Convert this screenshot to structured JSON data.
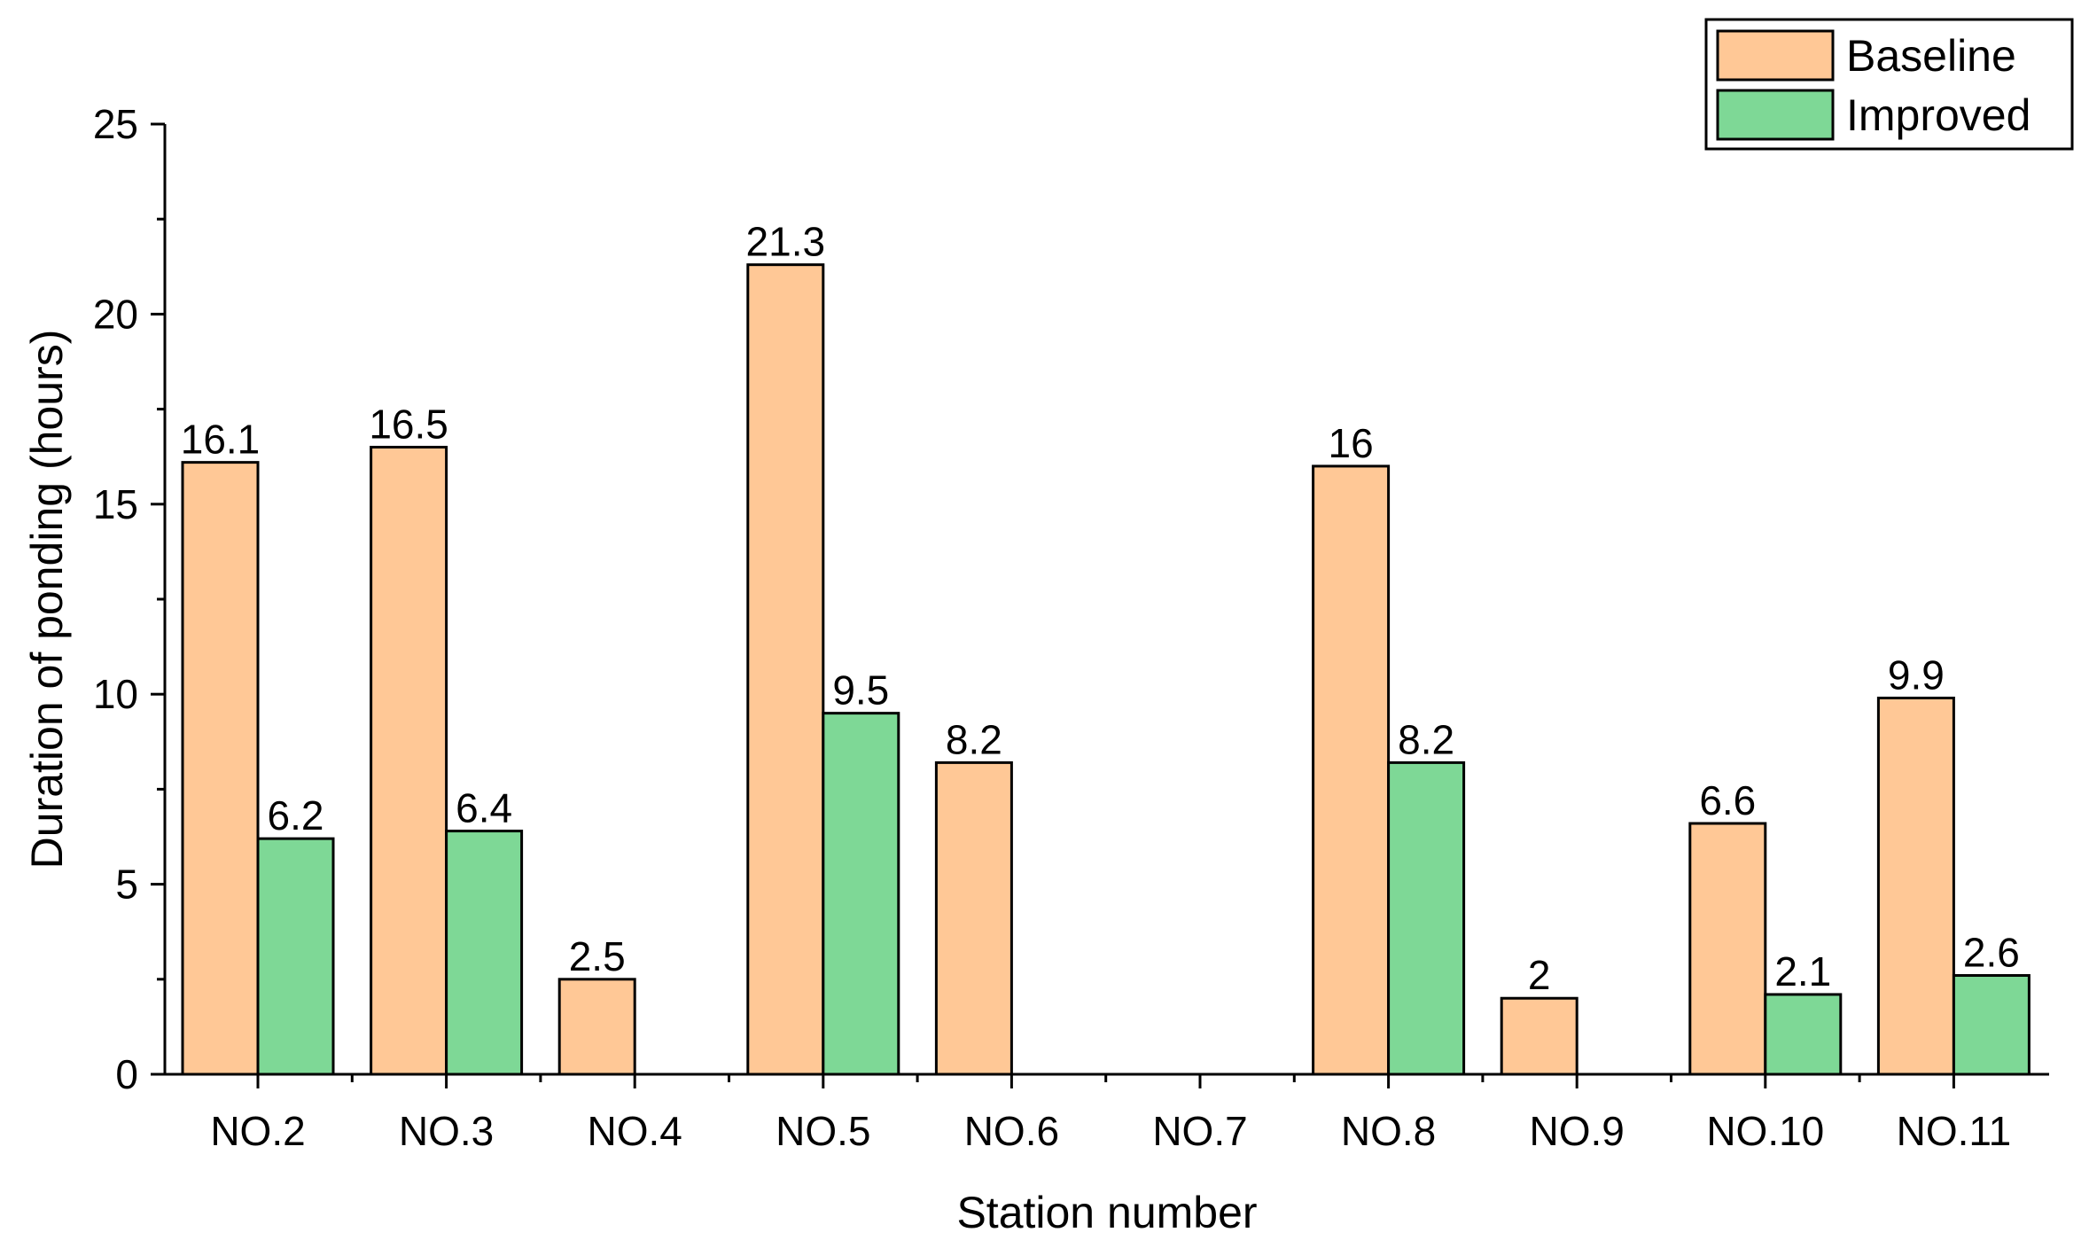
{
  "chart_data": {
    "type": "bar",
    "categories": [
      "NO.2",
      "NO.3",
      "NO.4",
      "NO.5",
      "NO.6",
      "NO.7",
      "NO.8",
      "NO.9",
      "NO.10",
      "NO.11"
    ],
    "series": [
      {
        "name": "Baseline",
        "color": "#FFC896",
        "values": [
          16.1,
          16.5,
          2.5,
          21.3,
          8.2,
          null,
          16,
          2,
          6.6,
          9.9
        ],
        "labels": [
          "16.1",
          "16.5",
          "2.5",
          "21.3",
          "8.2",
          "",
          "16",
          "2",
          "6.6",
          "9.9"
        ]
      },
      {
        "name": "Improved",
        "color": "#7ED896",
        "values": [
          6.2,
          6.4,
          null,
          9.5,
          null,
          null,
          8.2,
          null,
          2.1,
          2.6
        ],
        "labels": [
          "6.2",
          "6.4",
          "",
          "9.5",
          "",
          "",
          "8.2",
          "",
          "2.1",
          "2.6"
        ]
      }
    ],
    "xlabel": "Station number",
    "ylabel": "Duration of ponding (hours)",
    "ylim": [
      0,
      25
    ],
    "yticks": [
      0,
      5,
      10,
      15,
      20,
      25
    ],
    "ytick_labels": [
      "0",
      "5",
      "10",
      "15",
      "20",
      "25"
    ],
    "grid": false,
    "legend_position": "top-right"
  }
}
